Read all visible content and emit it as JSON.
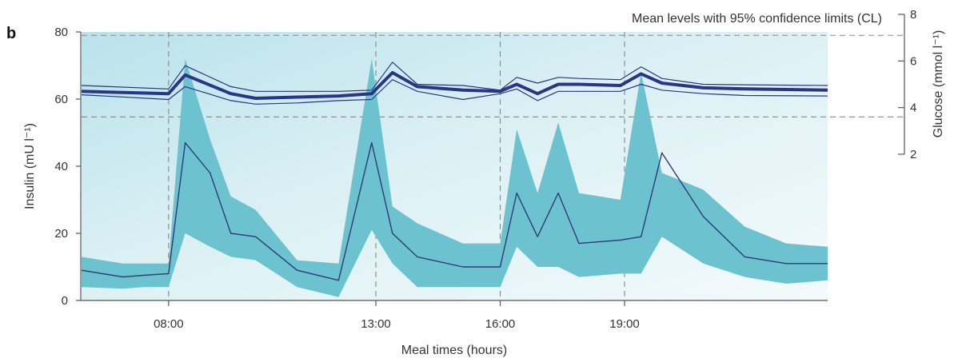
{
  "chart_data": {
    "type": "line",
    "panel_label": "b",
    "annotation": "Mean levels with 95% confidence limits (CL)",
    "xlabel": "Meal times (hours)",
    "ylabel": "Insulin (mU l⁻¹)",
    "y2label": "Glucose (mmol l⁻¹)",
    "x_ticks": [
      "08:00",
      "13:00",
      "16:00",
      "19:00"
    ],
    "x_tick_hours": [
      8,
      13,
      16,
      19
    ],
    "x_range_hours": [
      5.9,
      23.9
    ],
    "ylim": [
      0,
      80
    ],
    "y_ticks": [
      0,
      20,
      40,
      60,
      80
    ],
    "y2lim": [
      2,
      8
    ],
    "y2_ticks": [
      2,
      4,
      6,
      8
    ],
    "grid": "dashed vertical lines at meal times; dashed horizontal lines at glucose 3.6 and 7.1",
    "reference_lines_glucose": [
      3.6,
      7.1
    ],
    "colors": {
      "insulin_band": "#6cc3cf",
      "insulin_line": "#2e3a7a",
      "glucose_line": "#2a3585",
      "background": "#c6e6ee",
      "grid": "#888888"
    },
    "insulin": {
      "x_hours": [
        5.9,
        6.9,
        7.4,
        8.0,
        8.4,
        9.0,
        9.5,
        10.1,
        11.1,
        12.1,
        12.9,
        13.4,
        14.0,
        15.1,
        16.0,
        16.4,
        16.9,
        17.4,
        17.9,
        18.9,
        19.4,
        19.9,
        20.9,
        21.9,
        22.9,
        23.9
      ],
      "mean": [
        9,
        7,
        7.5,
        8,
        47,
        38,
        20,
        19,
        9,
        6,
        47,
        20,
        13,
        10,
        10,
        32,
        19,
        32,
        17,
        18,
        19,
        44,
        25,
        13,
        11,
        11
      ],
      "upper": [
        13,
        11,
        11,
        11,
        72,
        48,
        31,
        27,
        12,
        11,
        72,
        28,
        23,
        17,
        17,
        51,
        32,
        53,
        32,
        30,
        68,
        38,
        33,
        22,
        17,
        16
      ],
      "lower": [
        4,
        3.5,
        4,
        4,
        20,
        16,
        13,
        12,
        4,
        1,
        21,
        11,
        4,
        4,
        4,
        16,
        10,
        10,
        7,
        8,
        8,
        19,
        11,
        7,
        5,
        6
      ]
    },
    "glucose": {
      "x_hours": [
        5.9,
        8.0,
        8.4,
        9.5,
        10.1,
        11.1,
        12.1,
        12.9,
        13.4,
        14.0,
        15.1,
        16.0,
        16.4,
        16.9,
        17.4,
        17.9,
        18.9,
        19.4,
        19.9,
        20.9,
        21.9,
        23.9
      ],
      "mean": [
        4.7,
        4.6,
        5.4,
        4.6,
        4.4,
        4.45,
        4.5,
        4.6,
        5.5,
        4.9,
        4.75,
        4.7,
        5.0,
        4.6,
        5.0,
        5.0,
        4.95,
        5.45,
        5.05,
        4.85,
        4.8,
        4.75
      ],
      "upper": [
        4.95,
        4.8,
        5.8,
        4.9,
        4.7,
        4.7,
        4.7,
        4.75,
        5.95,
        5.0,
        4.95,
        4.75,
        5.3,
        5.05,
        5.3,
        5.25,
        5.2,
        5.75,
        5.25,
        5.0,
        4.98,
        4.95
      ],
      "lower": [
        4.55,
        4.35,
        4.9,
        4.3,
        4.15,
        4.2,
        4.3,
        4.35,
        5.2,
        4.7,
        4.35,
        4.6,
        4.8,
        4.3,
        4.7,
        4.7,
        4.7,
        5.0,
        4.75,
        4.6,
        4.52,
        4.5
      ]
    }
  }
}
